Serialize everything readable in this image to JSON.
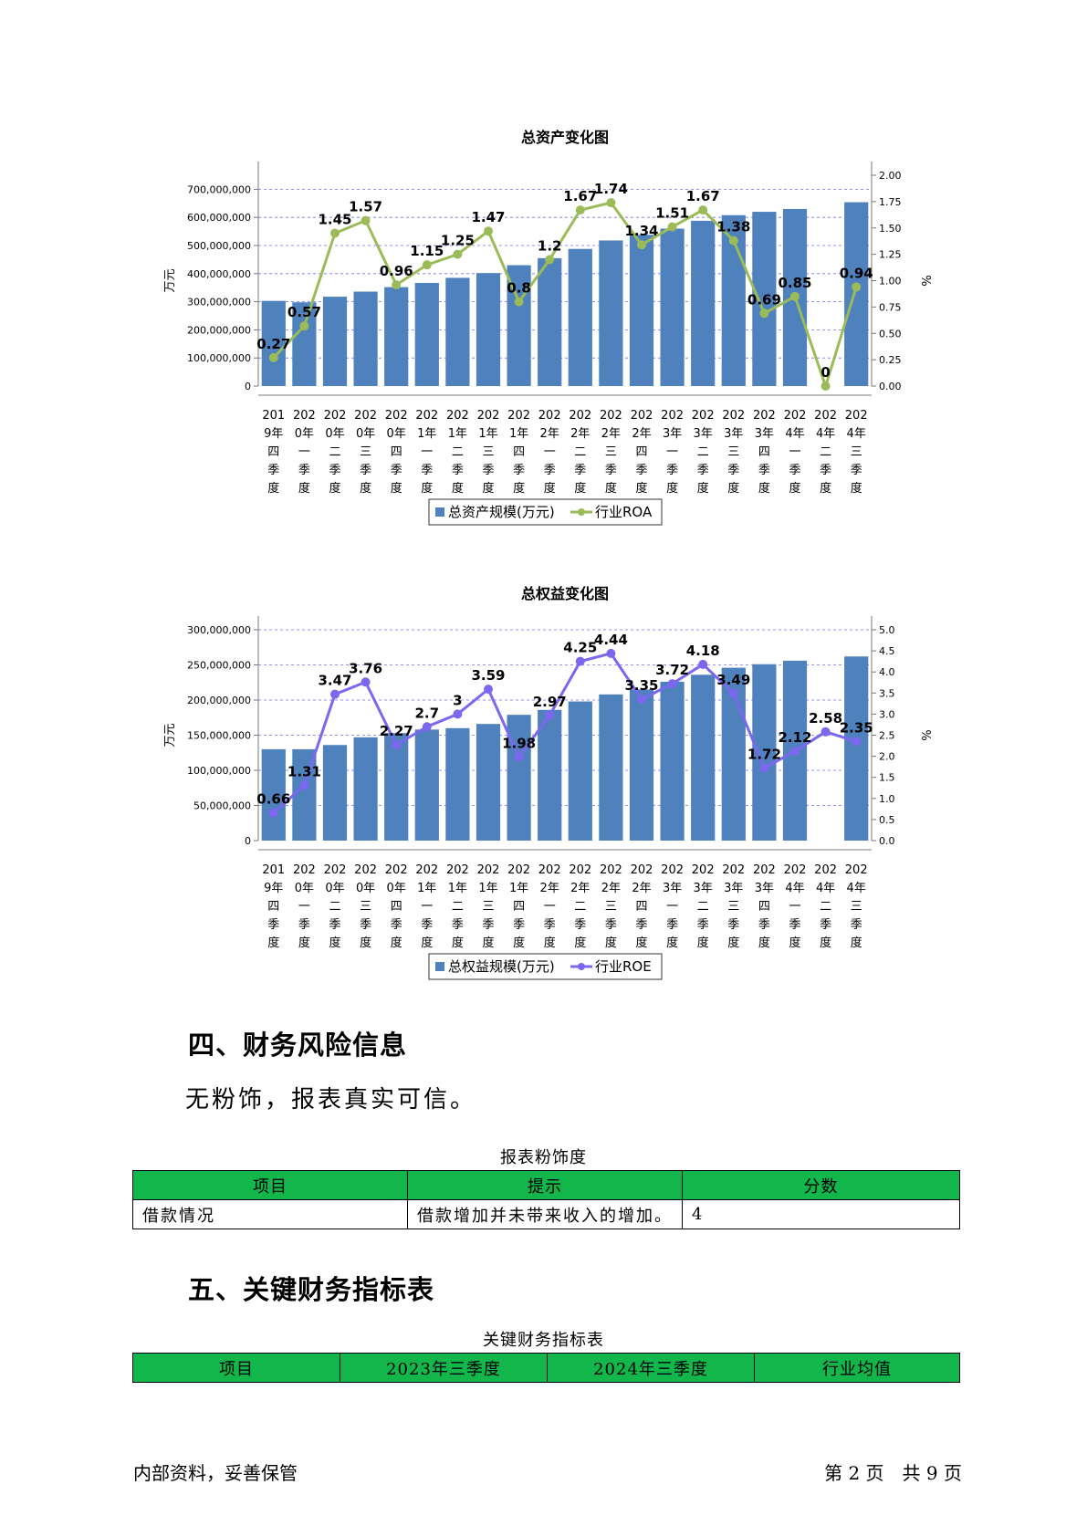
{
  "charts": [
    {
      "title": "总资产变化图",
      "left_axis_label": "万元",
      "right_axis_label": "%",
      "left_ticks": [
        "0",
        "100,000,000",
        "200,000,000",
        "300,000,000",
        "400,000,000",
        "500,000,000",
        "600,000,000",
        "700,000,000"
      ],
      "right_ticks": [
        "0.00",
        "0.25",
        "0.50",
        "0.75",
        "1.00",
        "1.25",
        "1.50",
        "1.75",
        "2.00"
      ],
      "bar_color": "#4f81bd",
      "line_color": "#9bbb59",
      "legend": {
        "bar": "总资产规模(万元)",
        "line": "行业ROA"
      }
    },
    {
      "title": "总权益变化图",
      "left_axis_label": "万元",
      "right_axis_label": "%",
      "left_ticks": [
        "0",
        "50,000,000",
        "100,000,000",
        "150,000,000",
        "200,000,000",
        "250,000,000",
        "300,000,000"
      ],
      "right_ticks": [
        "0.0",
        "0.5",
        "1.0",
        "1.5",
        "2.0",
        "2.5",
        "3.0",
        "3.5",
        "4.0",
        "4.5",
        "5.0"
      ],
      "bar_color": "#4f81bd",
      "line_color": "#7b68ee",
      "legend": {
        "bar": "总权益规模(万元)",
        "line": "行业ROE"
      }
    }
  ],
  "chart_data": [
    {
      "type": "bar",
      "title": "总资产变化图",
      "categories": [
        [
          "201",
          "9年",
          "四",
          "季",
          "度"
        ],
        [
          "202",
          "0年",
          "一",
          "季",
          "度"
        ],
        [
          "202",
          "0年",
          "二",
          "季",
          "度"
        ],
        [
          "202",
          "0年",
          "三",
          "季",
          "度"
        ],
        [
          "202",
          "0年",
          "四",
          "季",
          "度"
        ],
        [
          "202",
          "1年",
          "一",
          "季",
          "度"
        ],
        [
          "202",
          "1年",
          "二",
          "季",
          "度"
        ],
        [
          "202",
          "1年",
          "三",
          "季",
          "度"
        ],
        [
          "202",
          "1年",
          "四",
          "季",
          "度"
        ],
        [
          "202",
          "2年",
          "一",
          "季",
          "度"
        ],
        [
          "202",
          "2年",
          "二",
          "季",
          "度"
        ],
        [
          "202",
          "2年",
          "三",
          "季",
          "度"
        ],
        [
          "202",
          "2年",
          "四",
          "季",
          "度"
        ],
        [
          "202",
          "3年",
          "一",
          "季",
          "度"
        ],
        [
          "202",
          "3年",
          "二",
          "季",
          "度"
        ],
        [
          "202",
          "3年",
          "三",
          "季",
          "度"
        ],
        [
          "202",
          "3年",
          "四",
          "季",
          "度"
        ],
        [
          "202",
          "4年",
          "一",
          "季",
          "度"
        ],
        [
          "202",
          "4年",
          "二",
          "季",
          "度"
        ],
        [
          "202",
          "4年",
          "三",
          "季",
          "度"
        ]
      ],
      "series": [
        {
          "name": "总资产规模(万元)",
          "axis": "left",
          "values": [
            303000000,
            298000000,
            318000000,
            336000000,
            352000000,
            367000000,
            385000000,
            402000000,
            430000000,
            455000000,
            488000000,
            518000000,
            538000000,
            560000000,
            588000000,
            608000000,
            620000000,
            630000000,
            null,
            654000000
          ]
        },
        {
          "name": "行业ROA",
          "axis": "right",
          "type": "line",
          "values": [
            0.27,
            0.57,
            1.45,
            1.57,
            0.96,
            1.15,
            1.25,
            1.47,
            0.8,
            1.2,
            1.67,
            1.74,
            1.34,
            1.51,
            1.67,
            1.38,
            0.69,
            0.85,
            0,
            0.94
          ],
          "labels": [
            "0.27",
            "0.57",
            "1.45",
            "1.57",
            "0.96",
            "1.15",
            "1.25",
            "1.47",
            "0.8",
            "1.2",
            "1.67",
            "1.74",
            "1.34",
            "1.51",
            "1.67",
            "1.38",
            "0.69",
            "0.85",
            "0",
            "0.94"
          ]
        }
      ],
      "ylim": [
        0,
        750000000
      ],
      "y2lim": [
        0,
        2.0
      ],
      "ylabel": "万元",
      "y2label": "%",
      "legend": "bottom",
      "grid": true
    },
    {
      "type": "bar",
      "title": "总权益变化图",
      "categories": [
        [
          "201",
          "9年",
          "四",
          "季",
          "度"
        ],
        [
          "202",
          "0年",
          "一",
          "季",
          "度"
        ],
        [
          "202",
          "0年",
          "二",
          "季",
          "度"
        ],
        [
          "202",
          "0年",
          "三",
          "季",
          "度"
        ],
        [
          "202",
          "0年",
          "四",
          "季",
          "度"
        ],
        [
          "202",
          "1年",
          "一",
          "季",
          "度"
        ],
        [
          "202",
          "1年",
          "二",
          "季",
          "度"
        ],
        [
          "202",
          "1年",
          "三",
          "季",
          "度"
        ],
        [
          "202",
          "1年",
          "四",
          "季",
          "度"
        ],
        [
          "202",
          "2年",
          "一",
          "季",
          "度"
        ],
        [
          "202",
          "2年",
          "二",
          "季",
          "度"
        ],
        [
          "202",
          "2年",
          "三",
          "季",
          "度"
        ],
        [
          "202",
          "2年",
          "四",
          "季",
          "度"
        ],
        [
          "202",
          "3年",
          "一",
          "季",
          "度"
        ],
        [
          "202",
          "3年",
          "二",
          "季",
          "度"
        ],
        [
          "202",
          "3年",
          "三",
          "季",
          "度"
        ],
        [
          "202",
          "3年",
          "四",
          "季",
          "度"
        ],
        [
          "202",
          "4年",
          "一",
          "季",
          "度"
        ],
        [
          "202",
          "4年",
          "二",
          "季",
          "度"
        ],
        [
          "202",
          "4年",
          "三",
          "季",
          "度"
        ]
      ],
      "series": [
        {
          "name": "总权益规模(万元)",
          "axis": "left",
          "values": [
            130000000,
            130000000,
            136000000,
            147000000,
            153000000,
            158000000,
            160000000,
            166000000,
            179000000,
            186000000,
            198000000,
            208000000,
            215000000,
            226000000,
            236000000,
            246000000,
            251000000,
            256000000,
            null,
            262000000
          ]
        },
        {
          "name": "行业ROE",
          "axis": "right",
          "type": "line",
          "values": [
            0.66,
            1.31,
            3.47,
            3.76,
            2.27,
            2.7,
            3,
            3.59,
            1.98,
            2.97,
            4.25,
            4.44,
            3.35,
            3.72,
            4.18,
            3.49,
            1.72,
            2.12,
            2.58,
            2.35
          ],
          "labels": [
            "0.66",
            "1.31",
            "3.47",
            "3.76",
            "2.27",
            "2.7",
            "3",
            "3.59",
            "1.98",
            "2.97",
            "4.25",
            "4.44",
            "3.35",
            "3.72",
            "4.18",
            "3.49",
            "1.72",
            "2.12",
            "2.58",
            "2.35"
          ]
        }
      ],
      "ylim": [
        0,
        300000000
      ],
      "y2lim": [
        0,
        5.0
      ],
      "ylabel": "万元",
      "y2label": "%",
      "legend": "bottom",
      "grid": true
    }
  ],
  "section4": {
    "heading": "四、财务风险信息",
    "text": "无粉饰，报表真实可信。",
    "table_caption": "报表粉饰度",
    "headers": [
      "项目",
      "提示",
      "分数"
    ],
    "rows": [
      [
        "借款情况",
        "借款增加并未带来收入的增加。",
        "4"
      ]
    ],
    "header_color": "#12b64b"
  },
  "section5": {
    "heading": "五、关键财务指标表",
    "table_caption": "关键财务指标表",
    "headers": [
      "项目",
      "2023年三季度",
      "2024年三季度",
      "行业均值"
    ]
  },
  "footer": {
    "left": "内部资料，妥善保管",
    "right": "第 2 页　共 9 页"
  }
}
